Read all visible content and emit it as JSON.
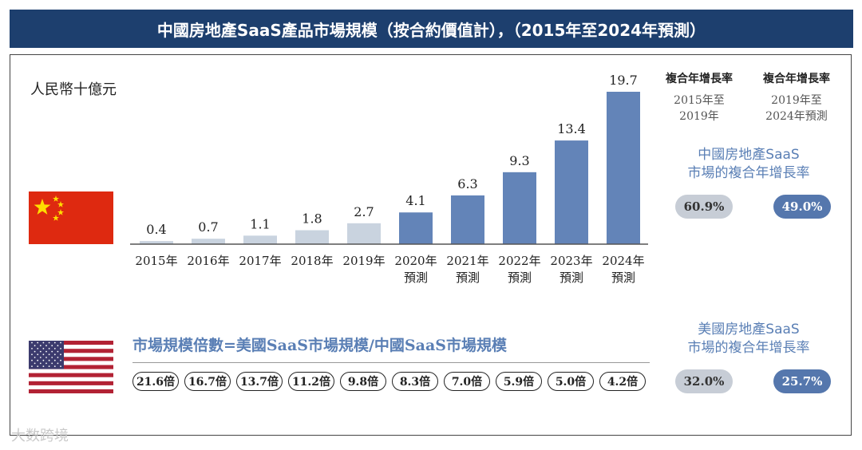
{
  "title": "中國房地產SaaS產品市場規模（按合約價值計），（2015年至2024年預測）",
  "unit_label": "人民幣十億元",
  "colors": {
    "actual": "#c9d3df",
    "forecast": "#6384b8",
    "title_bg": "#1d3f6e",
    "accent_text": "#5a7fb5"
  },
  "chart_data": {
    "type": "bar",
    "title": "中國房地產SaaS產品市場規模（按合約價值計），（2015年至2024年預測）",
    "ylabel": "人民幣十億元",
    "xlabel": "",
    "ylim": [
      0,
      20
    ],
    "categories": [
      "2015年",
      "2016年",
      "2017年",
      "2018年",
      "2019年",
      "2020年\n預測",
      "2021年\n預測",
      "2022年\n預測",
      "2023年\n預測",
      "2024年\n預測"
    ],
    "values": [
      0.4,
      0.7,
      1.1,
      1.8,
      2.7,
      4.1,
      6.3,
      9.3,
      13.4,
      19.7
    ],
    "value_labels": [
      "0.4",
      "0.7",
      "1.1",
      "1.8",
      "2.7",
      "4.1",
      "6.3",
      "9.3",
      "13.4",
      "19.7"
    ],
    "forecast_flags": [
      false,
      false,
      false,
      false,
      false,
      true,
      true,
      true,
      true,
      true
    ]
  },
  "cagr": {
    "heading_1": "複合年增長率",
    "heading_2": "複合年增長率",
    "period_1_line1": "2015年至",
    "period_1_line2": "2019年",
    "period_2_line1": "2019年至",
    "period_2_line2": "2024年預測",
    "china": {
      "label_line1": "中國房地產SaaS",
      "label_line2": "市場的複合年增長率",
      "value_1": "60.9%",
      "value_2": "49.0%"
    },
    "us": {
      "label_line1": "美國房地產SaaS",
      "label_line2": "市場的複合年增長率",
      "value_1": "32.0%",
      "value_2": "25.7%"
    }
  },
  "multiples": {
    "title": "市場規模倍數=美國SaaS市場規模/中國SaaS市場規模",
    "values": [
      "21.6倍",
      "16.7倍",
      "13.7倍",
      "11.2倍",
      "9.8倍",
      "8.3倍",
      "7.0倍",
      "5.9倍",
      "5.0倍",
      "4.2倍"
    ]
  },
  "watermark": "大数跨境"
}
